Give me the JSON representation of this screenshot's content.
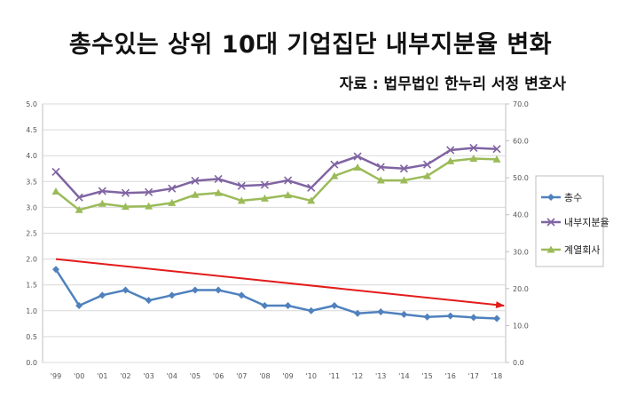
{
  "header": {
    "title": "총수있는 상위 10대 기업집단 내부지분율 변화",
    "source": "자료 : 법무법인 한누리 서정 변호사"
  },
  "chart_data": {
    "type": "line",
    "title": "총수있는 상위 10대 기업집단 내부지분율 변화",
    "categories": [
      "'99",
      "'00",
      "'01",
      "'02",
      "'03",
      "'04",
      "'05",
      "'06",
      "'07",
      "'08",
      "'09",
      "'10",
      "'11",
      "'12",
      "'13",
      "'14",
      "'15",
      "'16",
      "'17",
      "'18"
    ],
    "y_left": {
      "range": [
        0,
        5.0
      ],
      "ticks": [
        "0.0",
        "0.5",
        "1.0",
        "1.5",
        "2.0",
        "2.5",
        "3.0",
        "3.5",
        "4.0",
        "4.5",
        "5.0"
      ]
    },
    "y_right": {
      "range": [
        0,
        70.0
      ],
      "ticks": [
        "0.0",
        "10.0",
        "20.0",
        "30.0",
        "40.0",
        "50.0",
        "60.0",
        "70.0"
      ]
    },
    "grid": true,
    "legend_position": "right",
    "series": [
      {
        "name": "총수",
        "axis": "left",
        "marker": "diamond",
        "color": "#4f81bd",
        "values": [
          1.8,
          1.1,
          1.3,
          1.4,
          1.2,
          1.3,
          1.4,
          1.4,
          1.3,
          1.1,
          1.1,
          1.0,
          1.1,
          0.95,
          0.98,
          0.93,
          0.88,
          0.9,
          0.87,
          0.85
        ]
      },
      {
        "name": "내부지분율",
        "axis": "right",
        "marker": "x",
        "color": "#8064a2",
        "values": [
          51.6,
          44.7,
          46.4,
          45.9,
          46.1,
          47.1,
          49.2,
          49.7,
          47.8,
          48.1,
          49.3,
          47.3,
          53.6,
          55.8,
          52.9,
          52.5,
          53.6,
          57.5,
          58.1,
          57.8
        ]
      },
      {
        "name": "계열회사",
        "axis": "right",
        "marker": "triangle",
        "color": "#9bbb59",
        "values": [
          46.3,
          41.3,
          43.0,
          42.2,
          42.3,
          43.2,
          45.4,
          45.9,
          43.8,
          44.4,
          45.3,
          43.8,
          50.5,
          52.8,
          49.3,
          49.3,
          50.5,
          54.5,
          55.2,
          55.0
        ]
      }
    ],
    "trend_arrow": {
      "axis": "left",
      "start": [
        0,
        2.0
      ],
      "end": [
        19,
        1.1
      ],
      "color": "#e31b1b"
    }
  }
}
